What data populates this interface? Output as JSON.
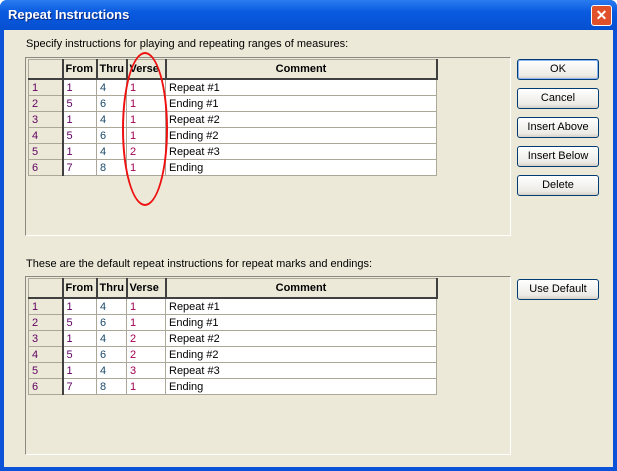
{
  "window": {
    "title": "Repeat Instructions",
    "close": "✕"
  },
  "top": {
    "label": "Specify instructions for playing and repeating ranges of measures:",
    "headers": [
      "",
      "From",
      "Thru",
      "Verse",
      "Comment"
    ],
    "rows": [
      [
        "1",
        "1",
        "4",
        "1",
        "Repeat #1"
      ],
      [
        "2",
        "5",
        "6",
        "1",
        "Ending #1"
      ],
      [
        "3",
        "1",
        "4",
        "1",
        "Repeat #2"
      ],
      [
        "4",
        "5",
        "6",
        "1",
        "Ending #2"
      ],
      [
        "5",
        "1",
        "4",
        "2",
        "Repeat #3"
      ],
      [
        "6",
        "7",
        "8",
        "1",
        "Ending"
      ]
    ]
  },
  "bottom": {
    "label": "These are the default repeat instructions for repeat marks and endings:",
    "headers": [
      "",
      "From",
      "Thru",
      "Verse",
      "Comment"
    ],
    "rows": [
      [
        "1",
        "1",
        "4",
        "1",
        "Repeat #1"
      ],
      [
        "2",
        "5",
        "6",
        "1",
        "Ending #1"
      ],
      [
        "3",
        "1",
        "4",
        "2",
        "Repeat #2"
      ],
      [
        "4",
        "5",
        "6",
        "2",
        "Ending #2"
      ],
      [
        "5",
        "1",
        "4",
        "3",
        "Repeat #3"
      ],
      [
        "6",
        "7",
        "8",
        "1",
        "Ending"
      ]
    ]
  },
  "buttons": {
    "ok": "OK",
    "cancel": "Cancel",
    "insert_above": "Insert Above",
    "insert_below": "Insert Below",
    "delete": "Delete",
    "use_default": "Use Default"
  },
  "annotation": {
    "color": "#ee1010"
  }
}
